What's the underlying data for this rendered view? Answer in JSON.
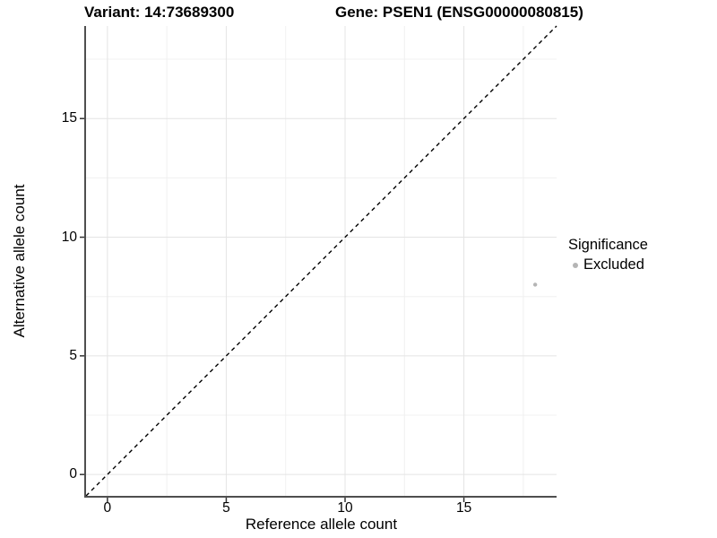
{
  "header": {
    "variant_title": "Variant: 14:73689300",
    "gene_title": "Gene: PSEN1 (ENSG00000080815)"
  },
  "axes": {
    "x_label": "Reference allele count",
    "y_label": "Alternative allele count"
  },
  "legend": {
    "title": "Significance",
    "items": [
      {
        "label": "Excluded",
        "color": "#b5b5b5"
      }
    ]
  },
  "colors": {
    "background": "#ffffff",
    "grid_major": "#e4e4e4",
    "grid_minor": "#f0f0f0",
    "axis_line": "#4f4f4f",
    "tick_mark": "#333333",
    "text": "#000000",
    "point": "#b5b5b5",
    "reference_line": "#000000"
  },
  "chart_data": {
    "type": "scatter",
    "title": "Variant: 14:73689300 — Gene: PSEN1 (ENSG00000080815)",
    "xlabel": "Reference allele count",
    "ylabel": "Alternative allele count",
    "xlim": [
      -0.9,
      18.9
    ],
    "ylim": [
      -0.9,
      18.9
    ],
    "x_ticks": [
      0,
      5,
      10,
      15
    ],
    "y_ticks": [
      0,
      5,
      10,
      15
    ],
    "x_minor_ticks": [
      2.5,
      7.5,
      12.5,
      17.5
    ],
    "y_minor_ticks": [
      2.5,
      7.5,
      12.5,
      17.5
    ],
    "grid": true,
    "legend_position": "right",
    "series": [
      {
        "name": "Excluded",
        "color": "#b5b5b5",
        "points": [
          {
            "x": 18,
            "y": 8
          }
        ]
      }
    ],
    "reference_line": {
      "type": "identity",
      "slope": 1,
      "intercept": 0,
      "style": "dashed",
      "color": "#000000"
    }
  }
}
